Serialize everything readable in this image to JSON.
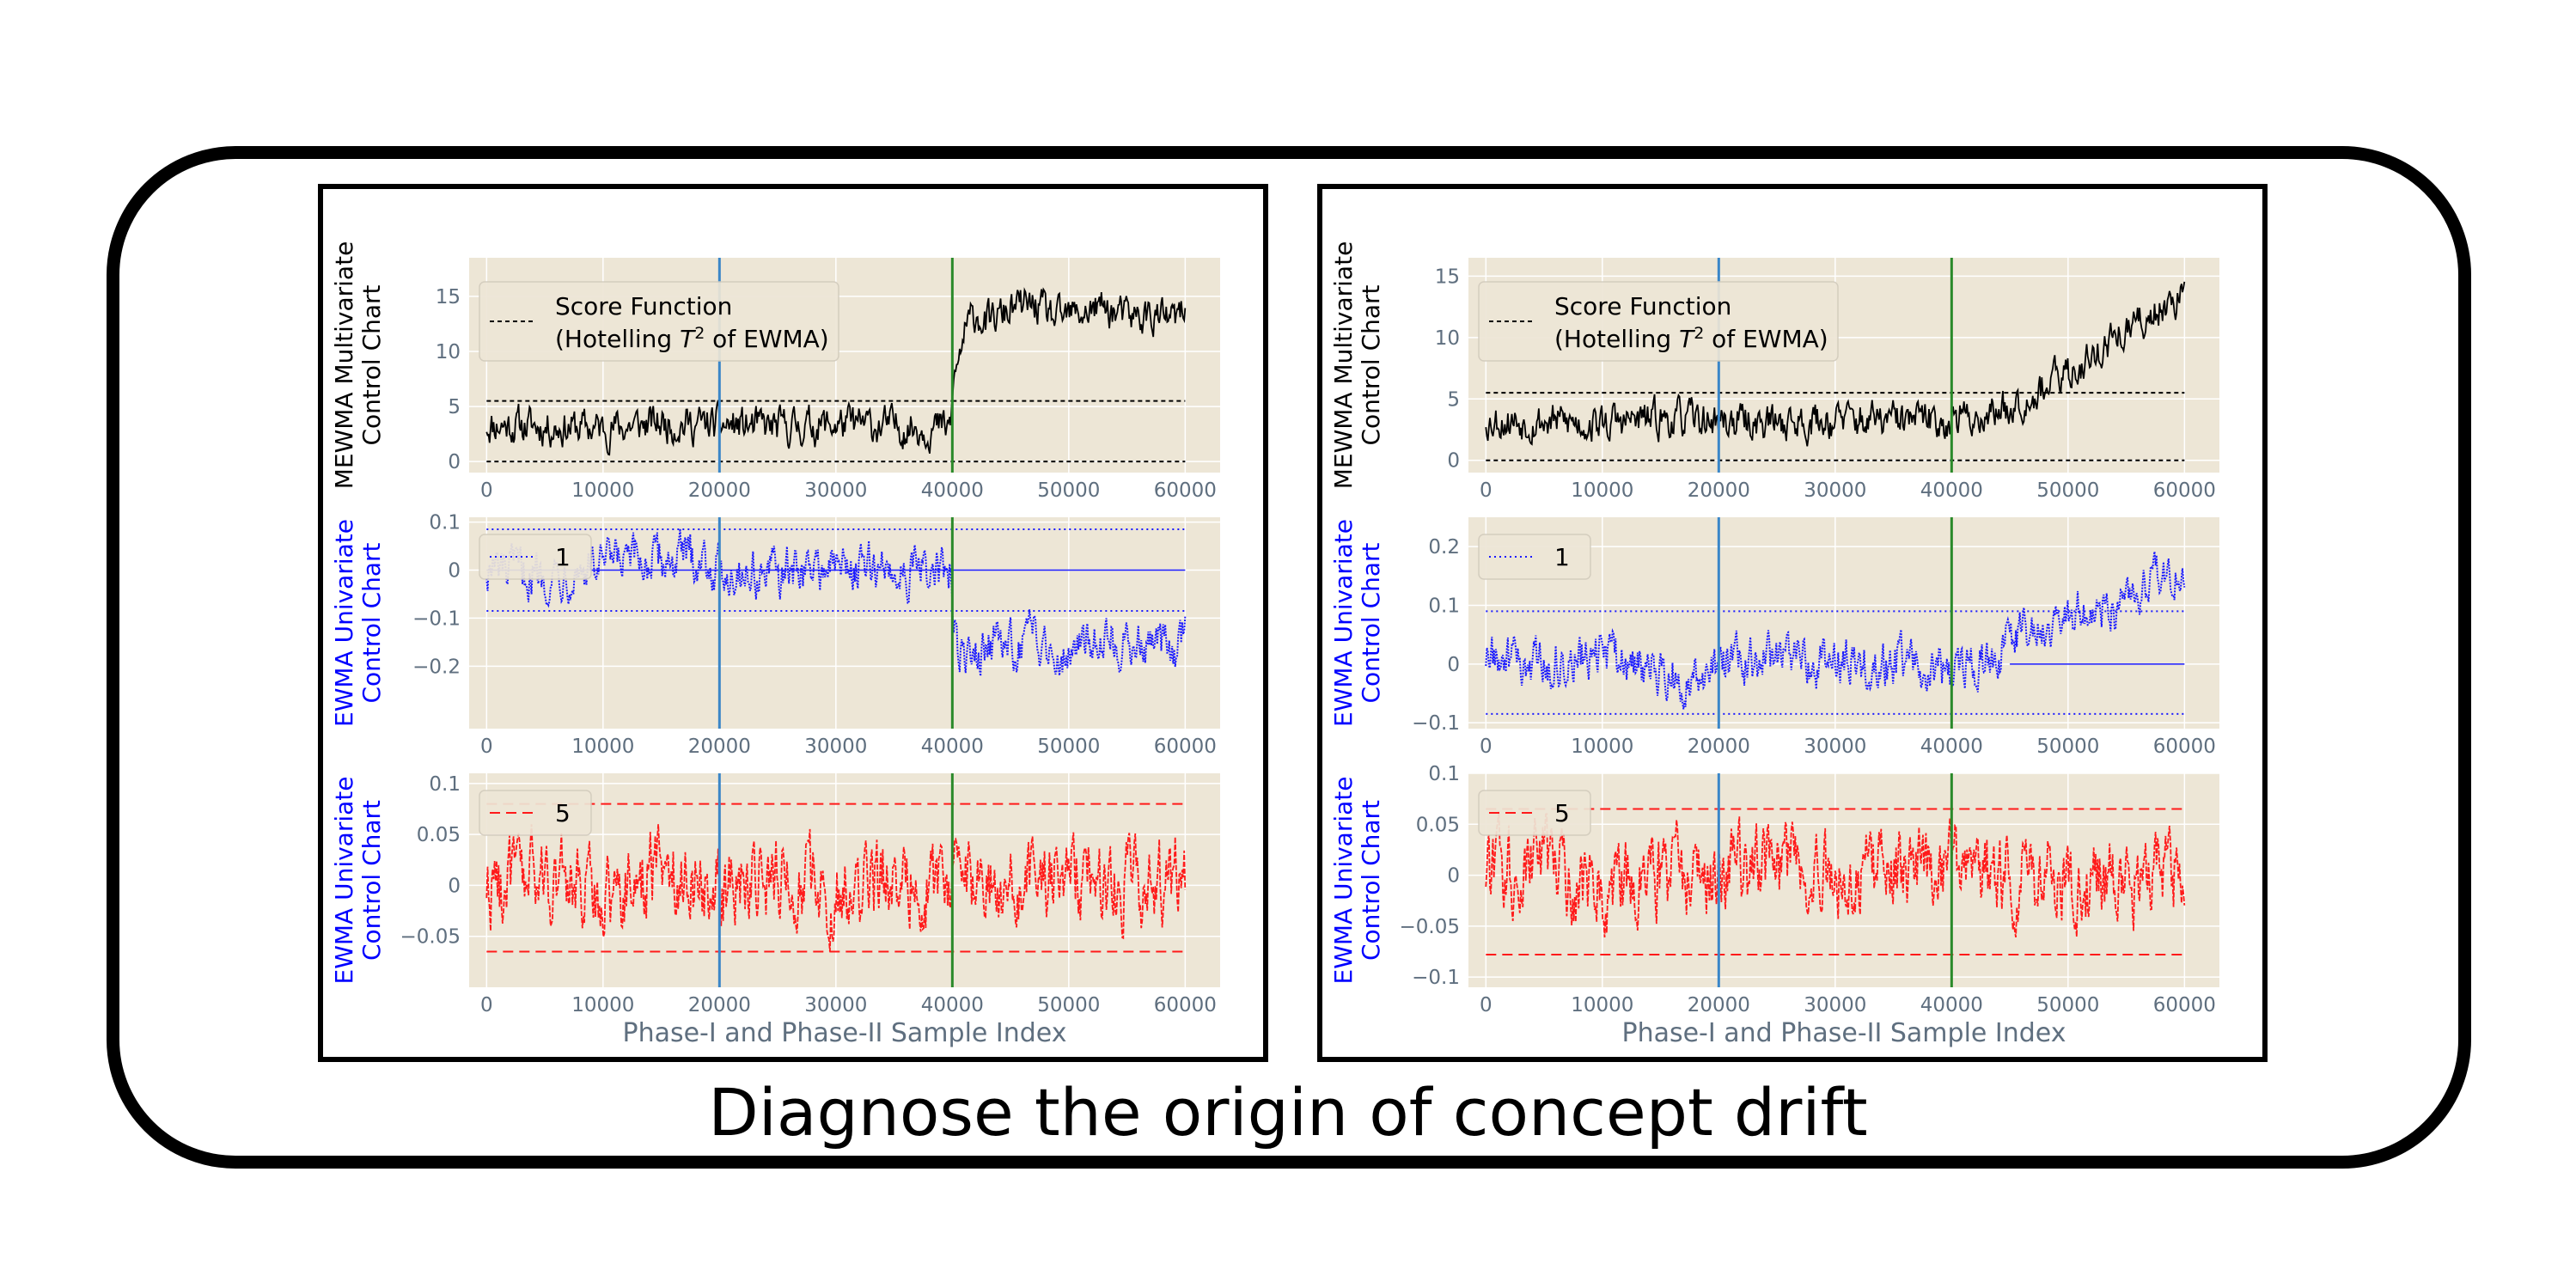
{
  "caption": "Diagnose the origin of concept drift",
  "colors": {
    "plot_bg": "#ede6d6",
    "grid": "#ffffff",
    "tick": "#5f6f7f",
    "vline_phase_start": "#3a86c8",
    "vline_phase_ii": "#2a8a2a",
    "mewma": "#000000",
    "ewma1": "#1a1aff",
    "ewma5": "#ff1a1a",
    "ylabel_mewma": "#000000",
    "ylabel_ewma": "#0000ff"
  },
  "chart_data": [
    {
      "type": "line",
      "panel": "left",
      "title": "",
      "xlabel": "Phase-I and Phase-II Sample Index",
      "xlim": [
        -1500,
        63000
      ],
      "xticks": [
        0,
        10000,
        20000,
        30000,
        40000,
        50000,
        60000
      ],
      "vlines": [
        20000,
        40000
      ],
      "subplots": [
        {
          "ylabel": [
            "MEWMA Multivariate",
            "Control Chart"
          ],
          "ylim": [
            -1,
            18.5
          ],
          "yticks": [
            0,
            5,
            10,
            15
          ],
          "legend": [
            "Score Function",
            "(Hotelling $T^2$ of EWMA)"
          ],
          "legend_style": "dashed-black",
          "limits": {
            "ucl": 5.5,
            "lcl": 0,
            "ucl_from": 40000
          },
          "series": [
            {
              "name": "Score Function (Hotelling T2 of EWMA)",
              "color": "#000000",
              "x": [
                0,
                5000,
                10000,
                15000,
                20000,
                25000,
                30000,
                35000,
                39900,
                40000,
                41000,
                42000,
                43000,
                45000,
                47000,
                49000,
                51000,
                53000,
                55000,
                57000,
                59000,
                60000
              ],
              "y": [
                3.4,
                3.2,
                3.0,
                3.5,
                3.3,
                3.1,
                3.4,
                3.2,
                3.0,
                6.5,
                11.5,
                13.5,
                12.5,
                13.8,
                14.2,
                12.8,
                13.5,
                14.0,
                13.0,
                13.3,
                12.8,
                13.5
              ]
            }
          ]
        },
        {
          "ylabel": [
            "EWMA Univariate",
            "Control Chart"
          ],
          "ylim": [
            -0.33,
            0.11
          ],
          "yticks": [
            0.1,
            0.0,
            -0.1,
            -0.2
          ],
          "legend": [
            "1"
          ],
          "legend_style": "dotted-blue",
          "limits": {
            "ucl": 0.085,
            "lcl": -0.085,
            "center": 0
          },
          "series": [
            {
              "name": "1",
              "color": "#1a1aff",
              "x": [
                0,
                5000,
                10000,
                15000,
                18000,
                20000,
                25000,
                30000,
                35000,
                39900,
                40000,
                41000,
                43000,
                45000,
                47000,
                49000,
                51000,
                53000,
                55000,
                57000,
                59000,
                60000
              ],
              "y": [
                0.0,
                -0.01,
                0.01,
                0.02,
                0.03,
                0.0,
                -0.01,
                0.01,
                0.0,
                -0.01,
                -0.1,
                -0.2,
                -0.15,
                -0.16,
                -0.14,
                -0.17,
                -0.15,
                -0.13,
                -0.16,
                -0.15,
                -0.17,
                -0.14
              ]
            }
          ]
        },
        {
          "ylabel": [
            "EWMA Univariate",
            "Control Chart"
          ],
          "ylim": [
            -0.1,
            0.11
          ],
          "yticks": [
            0.1,
            0.05,
            0.0,
            -0.05
          ],
          "legend": [
            "5"
          ],
          "legend_style": "dashed-red",
          "limits": {
            "ucl": 0.08,
            "lcl": -0.065
          },
          "series": [
            {
              "name": "5",
              "color": "#ff1a1a",
              "x": [
                0,
                5000,
                10000,
                15000,
                20000,
                25000,
                30000,
                35000,
                40000,
                45000,
                50000,
                55000,
                60000
              ],
              "y": [
                0.0,
                0.01,
                -0.01,
                0.02,
                0.0,
                0.01,
                -0.01,
                0.01,
                0.0,
                0.0,
                0.01,
                0.0,
                0.01
              ]
            }
          ]
        }
      ]
    },
    {
      "type": "line",
      "panel": "right",
      "title": "",
      "xlabel": "Phase-I and Phase-II Sample Index",
      "xlim": [
        -1500,
        63000
      ],
      "xticks": [
        0,
        10000,
        20000,
        30000,
        40000,
        50000,
        60000
      ],
      "vlines": [
        20000,
        40000
      ],
      "subplots": [
        {
          "ylabel": [
            "MEWMA Multivariate",
            "Control Chart"
          ],
          "ylim": [
            -1,
            16.5
          ],
          "yticks": [
            0,
            5,
            10,
            15
          ],
          "legend": [
            "Score Function",
            "(Hotelling $T^2$ of EWMA)"
          ],
          "legend_style": "dashed-black",
          "limits": {
            "ucl": 5.5,
            "lcl": 0
          },
          "series": [
            {
              "name": "Score Function (Hotelling T2 of EWMA)",
              "color": "#000000",
              "x": [
                0,
                5000,
                10000,
                15000,
                20000,
                25000,
                30000,
                35000,
                40000,
                42000,
                44000,
                46000,
                48000,
                50000,
                52000,
                54000,
                56000,
                58000,
                59000,
                60000
              ],
              "y": [
                3.3,
                3.2,
                3.0,
                3.4,
                3.2,
                3.1,
                3.3,
                3.2,
                3.3,
                3.5,
                4.0,
                5.0,
                6.0,
                7.0,
                8.5,
                10.0,
                11.0,
                12.5,
                13.5,
                13.0
              ]
            }
          ]
        },
        {
          "ylabel": [
            "EWMA Univariate",
            "Control Chart"
          ],
          "ylim": [
            -0.11,
            0.25
          ],
          "yticks": [
            0.2,
            0.1,
            0.0,
            -0.1
          ],
          "legend": [
            "1"
          ],
          "legend_style": "dotted-blue",
          "limits": {
            "ucl": 0.09,
            "lcl": -0.085,
            "center": 0,
            "center_from": 45000
          },
          "series": [
            {
              "name": "1",
              "color": "#1a1aff",
              "x": [
                0,
                5000,
                10000,
                15000,
                18000,
                20000,
                25000,
                30000,
                35000,
                40000,
                42000,
                44000,
                46000,
                48000,
                50000,
                52000,
                54000,
                56000,
                58000,
                60000
              ],
              "y": [
                0.01,
                0.0,
                0.01,
                -0.01,
                -0.03,
                0.0,
                0.01,
                0.0,
                0.0,
                -0.01,
                0.0,
                0.02,
                0.05,
                0.06,
                0.08,
                0.1,
                0.09,
                0.12,
                0.15,
                0.18
              ]
            }
          ]
        },
        {
          "ylabel": [
            "EWMA Univariate",
            "Control Chart"
          ],
          "ylim": [
            -0.11,
            0.1
          ],
          "yticks": [
            0.1,
            0.05,
            0.0,
            -0.05,
            -0.1
          ],
          "legend": [
            "5"
          ],
          "legend_style": "dashed-red",
          "limits": {
            "ucl": 0.065,
            "lcl": -0.078
          },
          "series": [
            {
              "name": "5",
              "color": "#ff1a1a",
              "x": [
                0,
                5000,
                10000,
                15000,
                20000,
                25000,
                30000,
                35000,
                40000,
                45000,
                50000,
                55000,
                60000
              ],
              "y": [
                0.0,
                0.01,
                -0.01,
                0.0,
                0.0,
                0.01,
                0.0,
                0.01,
                0.0,
                0.0,
                -0.01,
                0.0,
                0.0
              ]
            }
          ]
        }
      ]
    }
  ]
}
